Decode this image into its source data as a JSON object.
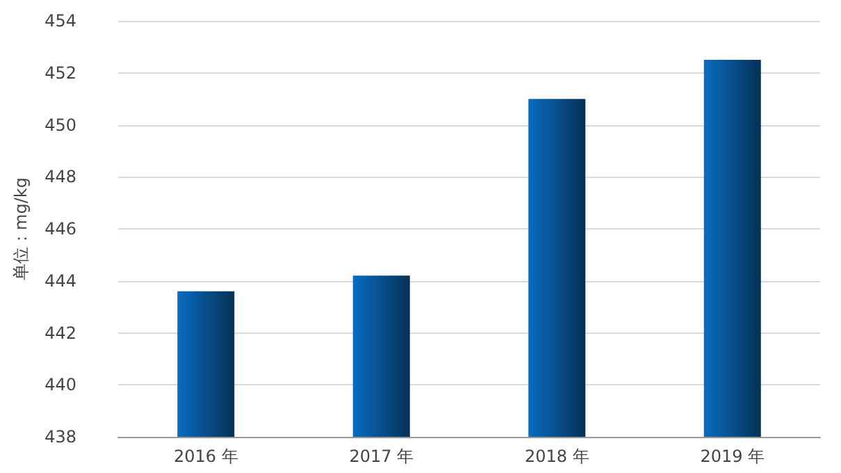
{
  "chart_data": {
    "type": "bar",
    "ylabel": "单位：mg/kg",
    "categories": [
      "2016 年",
      "2017 年",
      "2018 年",
      "2019 年"
    ],
    "values": [
      443.6,
      444.2,
      451.0,
      452.5
    ],
    "color": "#0a6cc0",
    "ylim": [
      438,
      454
    ],
    "yticks": [
      438,
      440,
      442,
      444,
      446,
      448,
      450,
      452,
      454
    ],
    "grid": "y"
  }
}
